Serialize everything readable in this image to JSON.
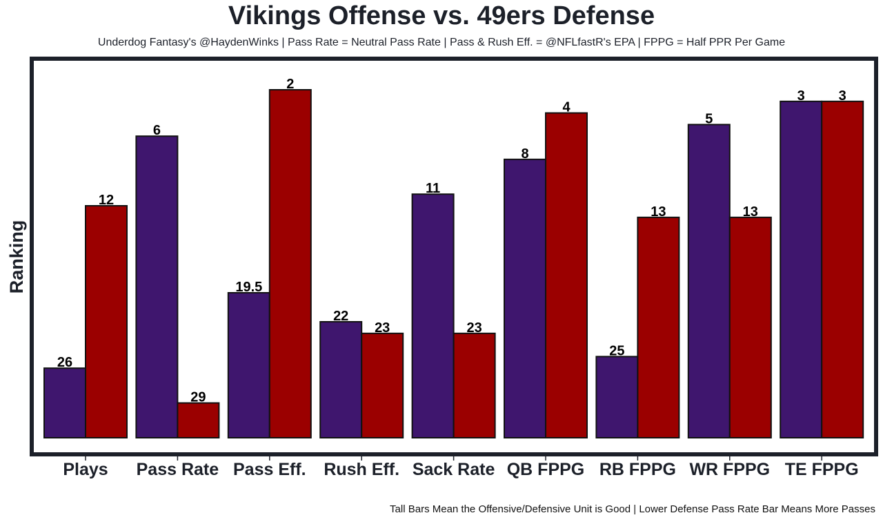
{
  "chart_data": {
    "type": "bar",
    "title": "Vikings Offense vs. 49ers Defense",
    "subtitle": "Underdog Fantasy's @HaydenWinks | Pass Rate = Neutral Pass Rate | Pass & Rush Eff. = @NFLfastR's EPA | FPPG = Half PPR Per Game",
    "footnote": "Tall Bars Mean the Offensive/Defensive Unit is Good | Lower Defense Pass Rate Bar Means More Passes",
    "xlabel": "",
    "ylabel": "Ranking",
    "categories": [
      "Plays",
      "Pass Rate",
      "Pass Eff.",
      "Rush Eff.",
      "Sack Rate",
      "QB FPPG",
      "RB FPPG",
      "WR FPPG",
      "TE FPPG"
    ],
    "series": [
      {
        "name": "Vikings Offense",
        "color": "#3f166e",
        "values": [
          26,
          6,
          19.5,
          22,
          11,
          8,
          25,
          5,
          3
        ]
      },
      {
        "name": "49ers Defense",
        "color": "#9b0000",
        "values": [
          12,
          29,
          2,
          23,
          23,
          4,
          13,
          13,
          3
        ]
      }
    ],
    "bar_height_rule": "height proportional to (32 - ranking); lower ranking = taller bar",
    "rank_ceiling": 32,
    "ylim": [
      0,
      31.5
    ],
    "yticks_shown": false,
    "grid": false,
    "legend": "none",
    "bar_edge_color": "#111111",
    "frame_color": "#1c2029"
  }
}
